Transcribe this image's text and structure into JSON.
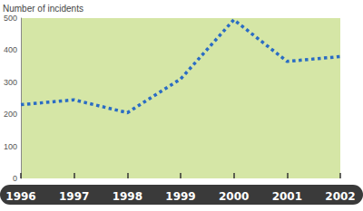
{
  "chart_data": {
    "type": "line",
    "y_label": "Number of incidents",
    "categories": [
      "1996",
      "1997",
      "1998",
      "1999",
      "2000",
      "2001",
      "2002"
    ],
    "values": [
      230,
      245,
      205,
      310,
      495,
      365,
      380
    ],
    "color": "#2a6cc4",
    "line_style": "dotted",
    "ylim": [
      0,
      500
    ],
    "yticks": [
      0,
      100,
      200,
      300,
      400,
      500
    ],
    "grid": false
  }
}
